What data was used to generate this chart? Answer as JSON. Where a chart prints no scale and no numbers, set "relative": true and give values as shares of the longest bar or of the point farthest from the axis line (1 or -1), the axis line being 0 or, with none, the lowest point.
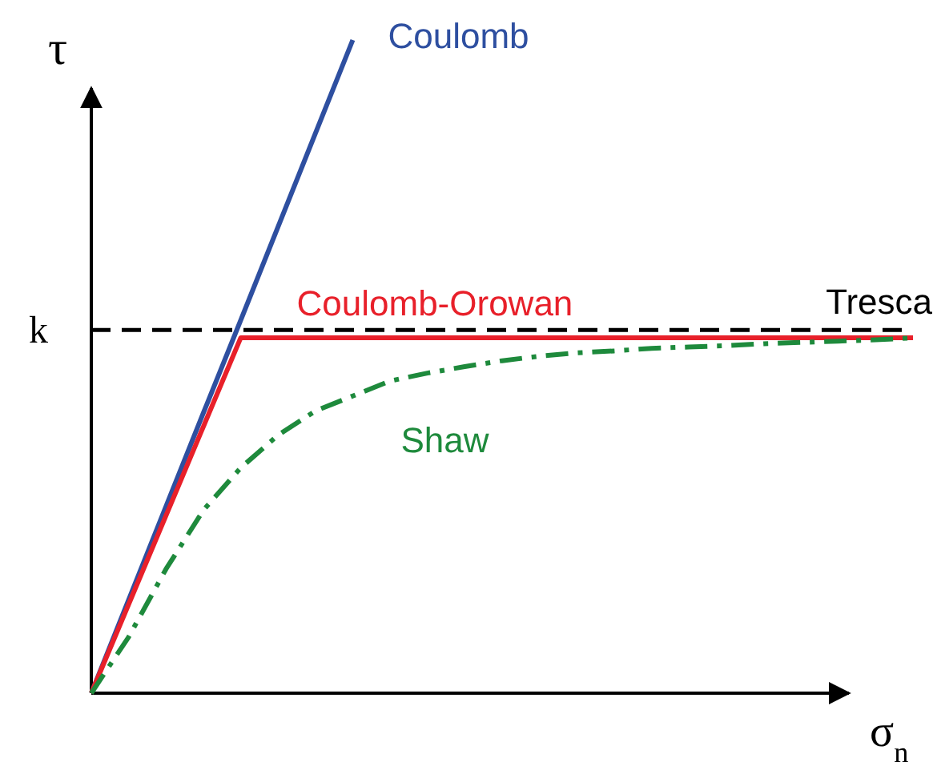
{
  "chart_data": {
    "type": "line",
    "relative": true,
    "xlabel": "σ$_{n}$",
    "ylabel": "τ",
    "categories": [
      null,
      null,
      null,
      null,
      null,
      null,
      null,
      null,
      null,
      null,
      null,
      null,
      null,
      null,
      null,
      null,
      null,
      null,
      null,
      null,
      null,
      null,
      null
    ],
    "series": [
      {
        "name": "Coulomb",
        "color": "#2e4fa0",
        "line_style": "solid",
        "values": [
          0,
          0.143,
          0.286,
          0.429,
          0.571,
          0.714,
          0.857,
          1,
          null,
          null,
          null,
          null,
          null,
          null,
          null,
          null,
          null,
          null,
          null,
          null,
          null,
          null,
          null
        ]
      },
      {
        "name": "Coulomb-Orowan",
        "color": "#e8202a",
        "line_style": "solid",
        "values": [
          0,
          0.136,
          0.272,
          0.408,
          0.544,
          0.544,
          0.544,
          0.544,
          0.544,
          0.544,
          0.544,
          0.544,
          0.544,
          0.544,
          0.544,
          0.544,
          0.544,
          0.544,
          0.544,
          0.544,
          0.544,
          0.544,
          0.544
        ]
      },
      {
        "name": "Shaw",
        "color": "#1e8a3c",
        "line_style": "dashdot",
        "values": [
          0,
          0.086,
          0.19,
          0.28,
          0.345,
          0.395,
          0.432,
          0.455,
          0.478,
          0.49,
          0.5,
          0.509,
          0.516,
          0.521,
          0.524,
          0.528,
          0.53,
          0.532,
          0.535,
          0.537,
          0.539,
          0.541,
          0.544
        ]
      }
    ],
    "ref_lines": [
      {
        "axis": "y",
        "value": 0.556,
        "label": "Tresca",
        "color": "#000000",
        "line_style": "dashed"
      }
    ],
    "annotations": [
      "k"
    ]
  }
}
